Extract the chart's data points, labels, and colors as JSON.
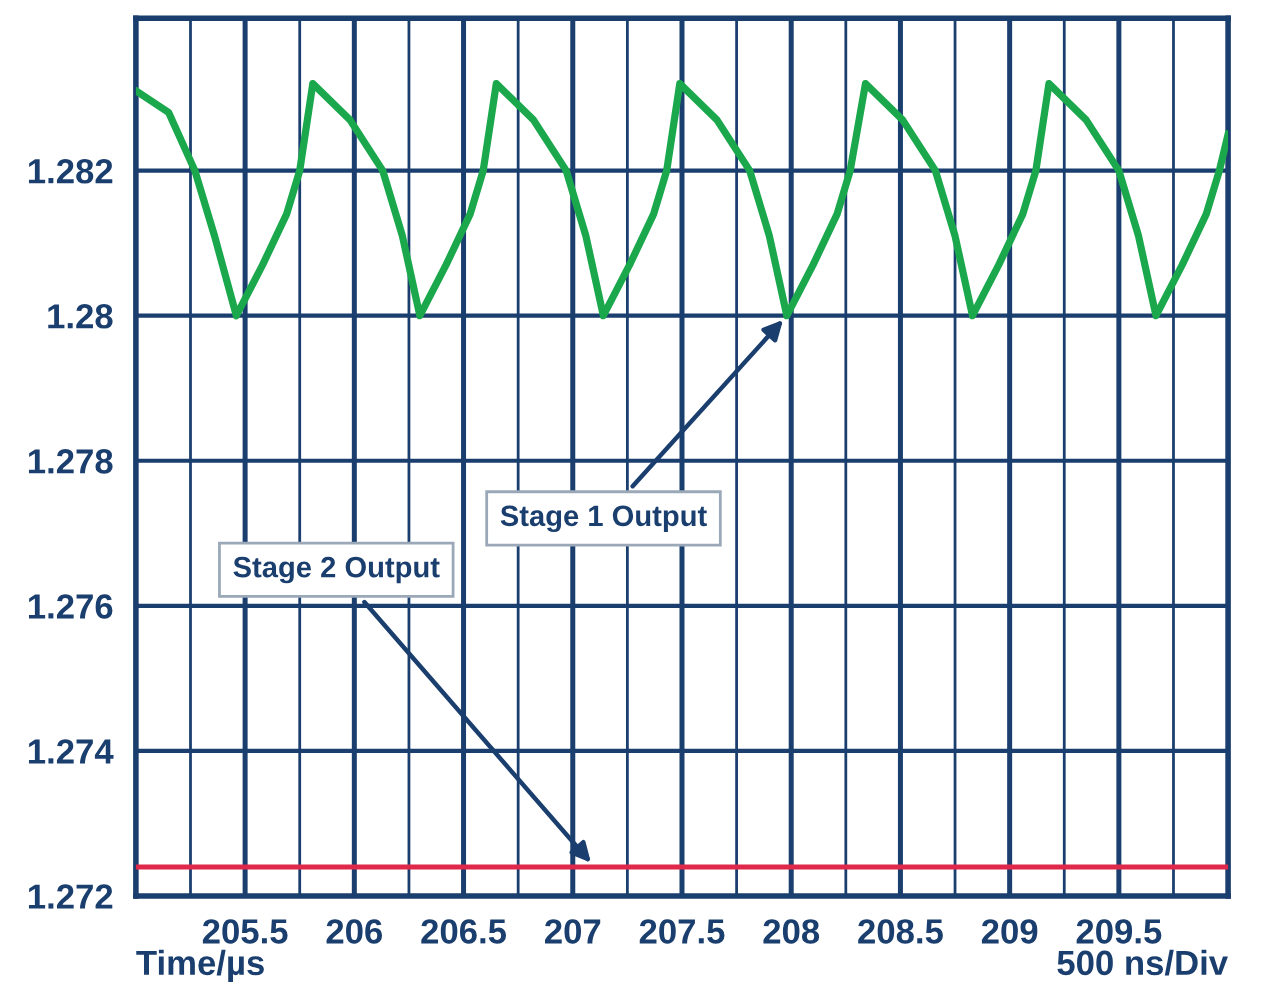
{
  "chart_data": {
    "type": "line",
    "xlabel": "Time/µs",
    "x": [
      205.0,
      205.15,
      205.27,
      205.36,
      205.46,
      205.58,
      205.69,
      205.75,
      205.81,
      205.98,
      206.13,
      206.22,
      206.3,
      206.42,
      206.53,
      206.59,
      206.65,
      206.82,
      206.97,
      207.06,
      207.14,
      207.26,
      207.37,
      207.43,
      207.49,
      207.66,
      207.81,
      207.9,
      207.98,
      208.1,
      208.21,
      208.27,
      208.34,
      208.51,
      208.66,
      208.75,
      208.83,
      208.95,
      209.06,
      209.12,
      209.18,
      209.35,
      209.5,
      209.59,
      209.67,
      209.79,
      209.9,
      209.96,
      210.0
    ],
    "series": [
      {
        "name": "Stage 1 Output",
        "color": "#1ba84c",
        "values": [
          1.2831,
          1.2828,
          1.282,
          1.2811,
          1.28,
          1.2807,
          1.2814,
          1.282,
          1.2832,
          1.2827,
          1.282,
          1.2811,
          1.28,
          1.2807,
          1.2814,
          1.282,
          1.2832,
          1.2827,
          1.282,
          1.2811,
          1.28,
          1.2807,
          1.2814,
          1.282,
          1.2832,
          1.2827,
          1.282,
          1.2811,
          1.28,
          1.2807,
          1.2814,
          1.282,
          1.2832,
          1.2827,
          1.282,
          1.2811,
          1.28,
          1.2807,
          1.2814,
          1.282,
          1.2832,
          1.2827,
          1.282,
          1.2811,
          1.28,
          1.2807,
          1.2814,
          1.282,
          1.2825
        ]
      },
      {
        "name": "Stage 2 Output",
        "color": "#e0284a",
        "x": [
          205.0,
          210.0
        ],
        "values": [
          1.2724,
          1.2724
        ]
      }
    ],
    "annotations": [
      "500 ns/Div"
    ],
    "xlim": [
      205.0,
      210.0
    ],
    "xticks": [
      {
        "value": 205.25,
        "label": null
      },
      205.5,
      {
        "value": 205.75,
        "label": null
      },
      206,
      {
        "value": 206.25,
        "label": null
      },
      206.5,
      {
        "value": 206.75,
        "label": null
      },
      207,
      {
        "value": 207.25,
        "label": null
      },
      207.5,
      {
        "value": 207.75,
        "label": null
      },
      208,
      {
        "value": 208.25,
        "label": null
      },
      208.5,
      {
        "value": 208.75,
        "label": null
      },
      209,
      {
        "value": 209.25,
        "label": null
      },
      209.5,
      {
        "value": 209.75,
        "label": null
      }
    ],
    "ylim": [
      1.272,
      1.2841
    ],
    "yticks": [
      1.272,
      1.274,
      1.276,
      1.278,
      1.28,
      1.282
    ],
    "grid": true,
    "legend": false,
    "marker": "none",
    "line_style": "solid"
  }
}
